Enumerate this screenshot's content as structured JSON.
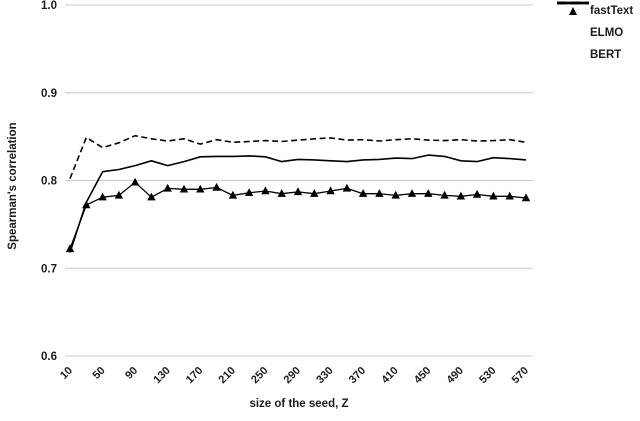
{
  "chart_data": {
    "type": "line",
    "title": "",
    "xlabel": "size of the seed, Z",
    "ylabel": "Spearman's correlation",
    "x": [
      10,
      30,
      50,
      70,
      90,
      110,
      130,
      150,
      170,
      190,
      210,
      230,
      250,
      270,
      290,
      310,
      330,
      350,
      370,
      390,
      410,
      430,
      450,
      470,
      490,
      510,
      530,
      550,
      570
    ],
    "xticks": [
      10,
      50,
      90,
      130,
      170,
      210,
      250,
      290,
      330,
      370,
      410,
      450,
      490,
      530,
      570
    ],
    "yticks": [
      "0.6",
      "0.7",
      "0.8",
      "0.9",
      "1.0"
    ],
    "ylim": [
      0.6,
      1.0
    ],
    "xlim": [
      10,
      570
    ],
    "grid": "horizontal-only",
    "legend_position": "top-right-outside",
    "colors": {
      "series": "#000000",
      "grid": "#cbcbcb",
      "text": "#1c1c1c",
      "background": "#ffffff"
    },
    "series": [
      {
        "name": "fastText",
        "style": "solid-thin",
        "marker": "triangle",
        "values": [
          0.722,
          0.772,
          0.781,
          0.783,
          0.798,
          0.781,
          0.791,
          0.79,
          0.79,
          0.792,
          0.783,
          0.786,
          0.788,
          0.785,
          0.787,
          0.785,
          0.788,
          0.791,
          0.785,
          0.785,
          0.783,
          0.785,
          0.785,
          0.783,
          0.782,
          0.784,
          0.782,
          0.782,
          0.78
        ]
      },
      {
        "name": "ELMO",
        "style": "dashed",
        "marker": "none",
        "values": [
          0.802,
          0.849,
          0.8375,
          0.843,
          0.851,
          0.8475,
          0.845,
          0.8475,
          0.8415,
          0.8465,
          0.8435,
          0.8445,
          0.8455,
          0.8445,
          0.846,
          0.8475,
          0.8485,
          0.846,
          0.8465,
          0.845,
          0.8465,
          0.8475,
          0.846,
          0.8455,
          0.8465,
          0.845,
          0.8455,
          0.8465,
          0.8435
        ]
      },
      {
        "name": "BERT",
        "style": "solid",
        "marker": "none",
        "values": [
          0.718,
          0.775,
          0.81,
          0.8125,
          0.817,
          0.8225,
          0.817,
          0.8215,
          0.827,
          0.8275,
          0.8275,
          0.828,
          0.827,
          0.8215,
          0.824,
          0.8235,
          0.8225,
          0.8215,
          0.8235,
          0.824,
          0.8255,
          0.825,
          0.829,
          0.8275,
          0.8225,
          0.8215,
          0.826,
          0.825,
          0.8235
        ]
      }
    ]
  }
}
